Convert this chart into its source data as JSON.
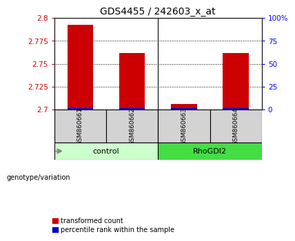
{
  "title": "GDS4455 / 242603_x_at",
  "samples": [
    "GSM860661",
    "GSM860662",
    "GSM860663",
    "GSM860664"
  ],
  "transformed_counts": [
    2.793,
    2.762,
    2.706,
    2.762
  ],
  "percentile_ranks": [
    1.5,
    1.5,
    1.5,
    1.5
  ],
  "ylim_left": [
    2.7,
    2.8
  ],
  "ylim_right": [
    0,
    100
  ],
  "yticks_left": [
    2.7,
    2.725,
    2.75,
    2.775,
    2.8
  ],
  "yticks_right": [
    0,
    25,
    50,
    75,
    100
  ],
  "ytick_labels_left": [
    "2.7",
    "2.725",
    "2.75",
    "2.775",
    "2.8"
  ],
  "ytick_labels_right": [
    "0",
    "25",
    "50",
    "75",
    "100%"
  ],
  "bar_color_red": "#cc0000",
  "bar_color_blue": "#0000cc",
  "bar_width": 0.5,
  "group1_label": "control",
  "group2_label": "RhoGDI2",
  "group1_color": "#ccffcc",
  "group2_color": "#44dd44",
  "legend_red_label": "transformed count",
  "legend_blue_label": "percentile rank within the sample",
  "genotype_label": "genotype/variation",
  "title_fontsize": 10,
  "tick_fontsize": 7.5,
  "sample_fontsize": 6.5,
  "group_fontsize": 8,
  "legend_fontsize": 7
}
